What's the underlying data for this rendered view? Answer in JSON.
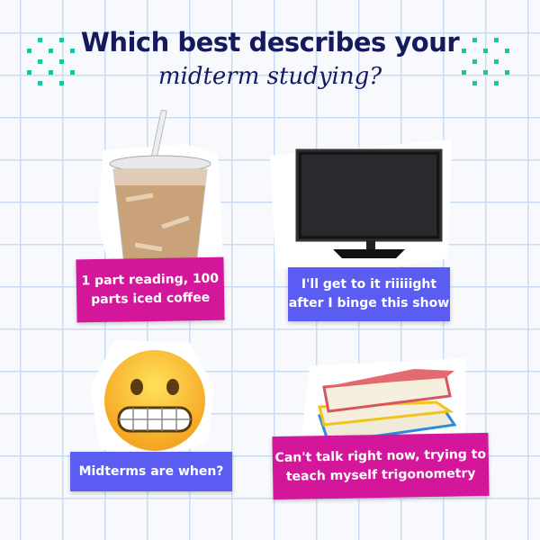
{
  "title": {
    "line1": "Which best describes your",
    "line2": "midterm studying?"
  },
  "colors": {
    "title": "#151a5e",
    "accent_dots": "#1fc29a",
    "magenta": "#d4169b",
    "blue": "#5b5cf2",
    "grid": "#c9dcf3"
  },
  "options": [
    {
      "icon": "iced-coffee-icon",
      "label": "1 part reading, 100 parts iced coffee"
    },
    {
      "icon": "television-icon",
      "label": "I'll get to it riiiiight after I binge this show"
    },
    {
      "icon": "grimacing-face-emoji",
      "label": "Midterms are when?"
    },
    {
      "icon": "book-stack-icon",
      "label": "Can't talk right now, trying to teach myself trigonometry"
    }
  ]
}
